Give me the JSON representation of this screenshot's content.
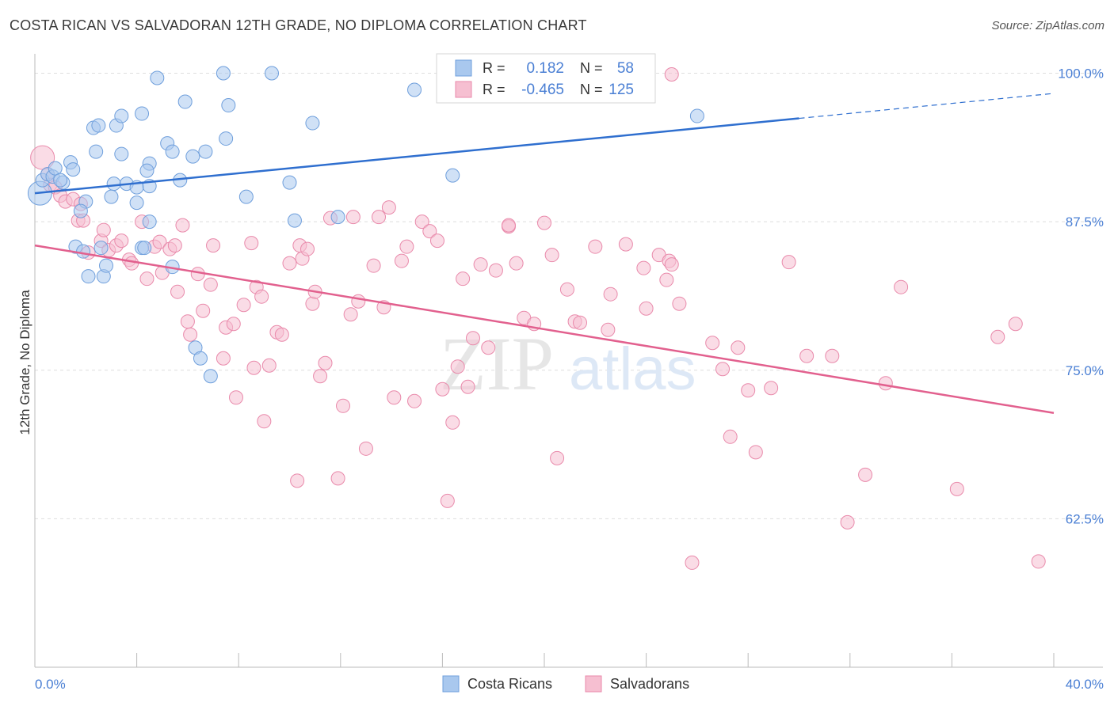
{
  "header": {
    "title": "COSTA RICAN VS SALVADORAN 12TH GRADE, NO DIPLOMA CORRELATION CHART",
    "source": "Source: ZipAtlas.com"
  },
  "watermark": {
    "zip": "ZIP",
    "atlas": "atlas"
  },
  "colors": {
    "blue_fill": "#a9c8ee",
    "blue_stroke": "#6f9fdc",
    "blue_line": "#2f6fcf",
    "pink_fill": "#f6bfd1",
    "pink_stroke": "#e98aab",
    "pink_line": "#e2608e",
    "tick_text": "#4a7fd4",
    "grid": "#dedede"
  },
  "chart_data": {
    "type": "scatter",
    "title": "COSTA RICAN VS SALVADORAN 12TH GRADE, NO DIPLOMA CORRELATION CHART",
    "xlabel": "",
    "ylabel": "12th Grade, No Diploma",
    "xlim": [
      0,
      40
    ],
    "ylim": [
      50,
      101.5
    ],
    "x_tick_labels": [
      "0.0%",
      "40.0%"
    ],
    "y_ticks": [
      62.5,
      75.0,
      87.5,
      100.0
    ],
    "y_tick_labels": [
      "62.5%",
      "75.0%",
      "87.5%",
      "100.0%"
    ],
    "legend": {
      "position": "top-center",
      "rows": [
        {
          "r_label": "R =",
          "r_value": "0.182",
          "n_label": "N =",
          "n_value": "58"
        },
        {
          "r_label": "R =",
          "r_value": "-0.465",
          "n_label": "N =",
          "n_value": "125"
        }
      ]
    },
    "series": [
      {
        "name": "Costa Ricans",
        "trend": {
          "x": [
            0,
            30
          ],
          "y": [
            89.9,
            96.2
          ],
          "dashed_to": [
            40,
            98.3
          ]
        },
        "points": [
          [
            0.2,
            89.9
          ],
          [
            0.3,
            91.0
          ],
          [
            0.5,
            91.5
          ],
          [
            0.7,
            91.3
          ],
          [
            0.8,
            92.0
          ],
          [
            1.1,
            90.8
          ],
          [
            1.0,
            91.0
          ],
          [
            1.4,
            92.5
          ],
          [
            1.5,
            91.9
          ],
          [
            2.0,
            89.2
          ],
          [
            1.8,
            88.4
          ],
          [
            2.3,
            95.4
          ],
          [
            2.4,
            93.4
          ],
          [
            2.5,
            95.6
          ],
          [
            3.2,
            95.6
          ],
          [
            3.4,
            96.4
          ],
          [
            3.4,
            93.2
          ],
          [
            4.2,
            96.6
          ],
          [
            4.8,
            99.6
          ],
          [
            5.9,
            97.6
          ],
          [
            7.4,
            100.0
          ],
          [
            7.6,
            97.3
          ],
          [
            9.3,
            100.0
          ],
          [
            10.9,
            95.8
          ],
          [
            14.9,
            98.6
          ],
          [
            26.0,
            96.4
          ],
          [
            5.2,
            94.1
          ],
          [
            5.4,
            93.4
          ],
          [
            6.2,
            93.0
          ],
          [
            6.7,
            93.4
          ],
          [
            7.5,
            94.5
          ],
          [
            4.5,
            92.4
          ],
          [
            4.4,
            91.8
          ],
          [
            3.1,
            90.7
          ],
          [
            3.6,
            90.7
          ],
          [
            4.0,
            90.4
          ],
          [
            4.5,
            90.5
          ],
          [
            5.7,
            91.0
          ],
          [
            3.0,
            89.6
          ],
          [
            4.0,
            89.1
          ],
          [
            8.3,
            89.6
          ],
          [
            10.0,
            90.8
          ],
          [
            4.5,
            87.5
          ],
          [
            10.2,
            87.6
          ],
          [
            11.9,
            87.9
          ],
          [
            16.4,
            91.4
          ],
          [
            1.6,
            85.4
          ],
          [
            2.1,
            82.9
          ],
          [
            2.7,
            82.9
          ],
          [
            2.8,
            83.8
          ],
          [
            4.2,
            85.3
          ],
          [
            5.4,
            83.7
          ],
          [
            6.3,
            76.9
          ],
          [
            6.5,
            76.0
          ],
          [
            6.9,
            74.5
          ],
          [
            4.3,
            85.3
          ],
          [
            1.9,
            85.0
          ],
          [
            2.6,
            85.3
          ]
        ]
      },
      {
        "name": "Salvadorans",
        "trend": {
          "x": [
            0,
            40
          ],
          "y": [
            85.5,
            71.4
          ]
        },
        "points": [
          [
            0.3,
            92.9
          ],
          [
            0.5,
            91.5
          ],
          [
            0.6,
            90.6
          ],
          [
            0.8,
            90.4
          ],
          [
            1.0,
            89.7
          ],
          [
            1.2,
            89.2
          ],
          [
            1.5,
            89.4
          ],
          [
            1.8,
            89.0
          ],
          [
            1.7,
            87.6
          ],
          [
            1.9,
            87.6
          ],
          [
            2.1,
            84.9
          ],
          [
            2.6,
            85.9
          ],
          [
            2.7,
            86.8
          ],
          [
            2.9,
            85.1
          ],
          [
            3.2,
            85.5
          ],
          [
            3.4,
            85.9
          ],
          [
            3.7,
            84.3
          ],
          [
            3.8,
            84.0
          ],
          [
            4.2,
            87.5
          ],
          [
            4.4,
            82.7
          ],
          [
            4.7,
            85.4
          ],
          [
            4.9,
            85.8
          ],
          [
            5.0,
            83.2
          ],
          [
            5.3,
            85.2
          ],
          [
            5.5,
            85.5
          ],
          [
            5.6,
            81.6
          ],
          [
            5.8,
            87.2
          ],
          [
            6.1,
            78.0
          ],
          [
            6.4,
            83.1
          ],
          [
            6.6,
            80.0
          ],
          [
            6.9,
            82.2
          ],
          [
            7.0,
            85.5
          ],
          [
            7.4,
            76.0
          ],
          [
            7.5,
            78.6
          ],
          [
            7.8,
            78.9
          ],
          [
            7.9,
            72.7
          ],
          [
            8.2,
            80.5
          ],
          [
            8.5,
            85.7
          ],
          [
            8.7,
            82.0
          ],
          [
            8.9,
            81.2
          ],
          [
            9.0,
            70.7
          ],
          [
            9.2,
            75.4
          ],
          [
            9.5,
            78.2
          ],
          [
            9.7,
            78.0
          ],
          [
            10.0,
            84.0
          ],
          [
            10.3,
            65.7
          ],
          [
            10.4,
            85.5
          ],
          [
            10.5,
            84.4
          ],
          [
            10.7,
            85.2
          ],
          [
            10.9,
            80.6
          ],
          [
            11.2,
            74.5
          ],
          [
            11.4,
            75.6
          ],
          [
            11.6,
            87.8
          ],
          [
            11.9,
            65.9
          ],
          [
            12.1,
            72.0
          ],
          [
            12.4,
            79.7
          ],
          [
            12.7,
            80.8
          ],
          [
            13.0,
            68.4
          ],
          [
            13.3,
            83.8
          ],
          [
            13.5,
            87.9
          ],
          [
            13.7,
            80.3
          ],
          [
            13.9,
            88.7
          ],
          [
            14.1,
            72.7
          ],
          [
            14.4,
            84.2
          ],
          [
            14.6,
            85.4
          ],
          [
            14.9,
            72.4
          ],
          [
            15.2,
            87.5
          ],
          [
            15.5,
            86.7
          ],
          [
            15.8,
            85.9
          ],
          [
            16.0,
            73.4
          ],
          [
            16.2,
            64.0
          ],
          [
            16.4,
            70.6
          ],
          [
            16.6,
            75.3
          ],
          [
            16.8,
            82.7
          ],
          [
            17.0,
            73.6
          ],
          [
            17.2,
            77.7
          ],
          [
            17.5,
            83.9
          ],
          [
            17.8,
            76.9
          ],
          [
            18.1,
            83.4
          ],
          [
            18.6,
            87.1
          ],
          [
            18.9,
            84.0
          ],
          [
            19.2,
            79.4
          ],
          [
            19.6,
            78.9
          ],
          [
            20.0,
            87.4
          ],
          [
            20.3,
            84.7
          ],
          [
            20.5,
            67.6
          ],
          [
            20.9,
            81.8
          ],
          [
            21.2,
            79.1
          ],
          [
            21.4,
            79.0
          ],
          [
            22.0,
            85.4
          ],
          [
            22.5,
            78.4
          ],
          [
            22.6,
            81.4
          ],
          [
            23.2,
            85.6
          ],
          [
            23.9,
            83.6
          ],
          [
            24.0,
            80.2
          ],
          [
            24.5,
            84.7
          ],
          [
            24.8,
            82.6
          ],
          [
            24.9,
            84.2
          ],
          [
            25.0,
            83.9
          ],
          [
            25.3,
            80.6
          ],
          [
            25.8,
            58.8
          ],
          [
            26.6,
            77.3
          ],
          [
            27.0,
            75.1
          ],
          [
            27.3,
            69.4
          ],
          [
            27.6,
            76.9
          ],
          [
            28.0,
            73.3
          ],
          [
            28.3,
            68.1
          ],
          [
            28.9,
            73.5
          ],
          [
            29.6,
            84.1
          ],
          [
            30.3,
            76.2
          ],
          [
            31.3,
            76.2
          ],
          [
            31.9,
            62.2
          ],
          [
            32.6,
            66.2
          ],
          [
            33.4,
            73.9
          ],
          [
            34.0,
            82.0
          ],
          [
            36.2,
            65.0
          ],
          [
            37.8,
            77.8
          ],
          [
            38.5,
            78.9
          ],
          [
            39.4,
            58.9
          ],
          [
            25.0,
            99.9
          ],
          [
            18.6,
            87.2
          ],
          [
            12.5,
            87.9
          ],
          [
            11.0,
            81.6
          ],
          [
            8.6,
            75.2
          ],
          [
            6.0,
            79.1
          ]
        ]
      }
    ]
  },
  "bottom_legend": {
    "items": [
      {
        "label": "Costa Ricans"
      },
      {
        "label": "Salvadorans"
      }
    ]
  }
}
